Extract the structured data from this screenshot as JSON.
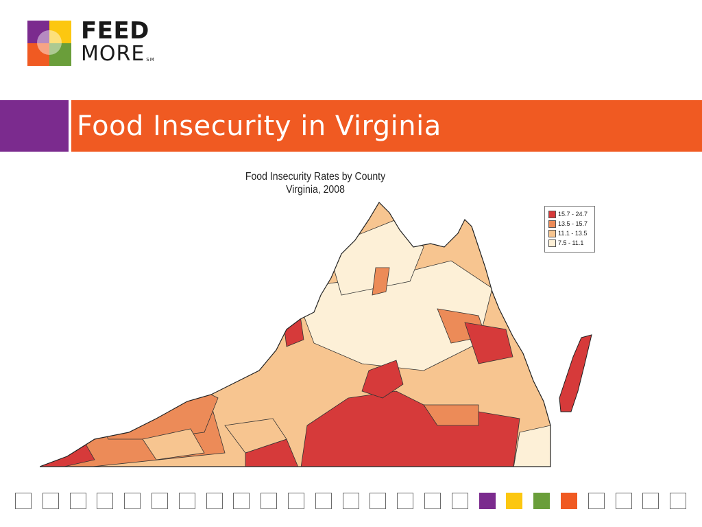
{
  "logo": {
    "line1": "FEED",
    "line2": "MORE",
    "mark": "SM",
    "colors": {
      "purple": "#7b2b8e",
      "yellow": "#fcc710",
      "orange": "#f05a22",
      "green": "#6a9e3a"
    }
  },
  "slide": {
    "title": "Food Insecurity in Virginia",
    "accent_purple": "#7b2b8e",
    "accent_orange": "#f05a22"
  },
  "map": {
    "title_line1": "Food Insecurity Rates by County",
    "title_line2": "Virginia, 2008",
    "legend": [
      {
        "label": "15.7 - 24.7",
        "color": "#d63a3a"
      },
      {
        "label": "13.5 - 15.7",
        "color": "#ec8b58"
      },
      {
        "label": "11.1 - 13.5",
        "color": "#f7c590"
      },
      {
        "label": "7.5 - 11.1",
        "color": "#fdf0d7"
      }
    ]
  },
  "footer_squares": {
    "count": 25,
    "filled": [
      {
        "index": 17,
        "color": "#7b2b8e"
      },
      {
        "index": 18,
        "color": "#fcc710"
      },
      {
        "index": 19,
        "color": "#6a9e3a"
      },
      {
        "index": 20,
        "color": "#f05a22"
      }
    ]
  }
}
